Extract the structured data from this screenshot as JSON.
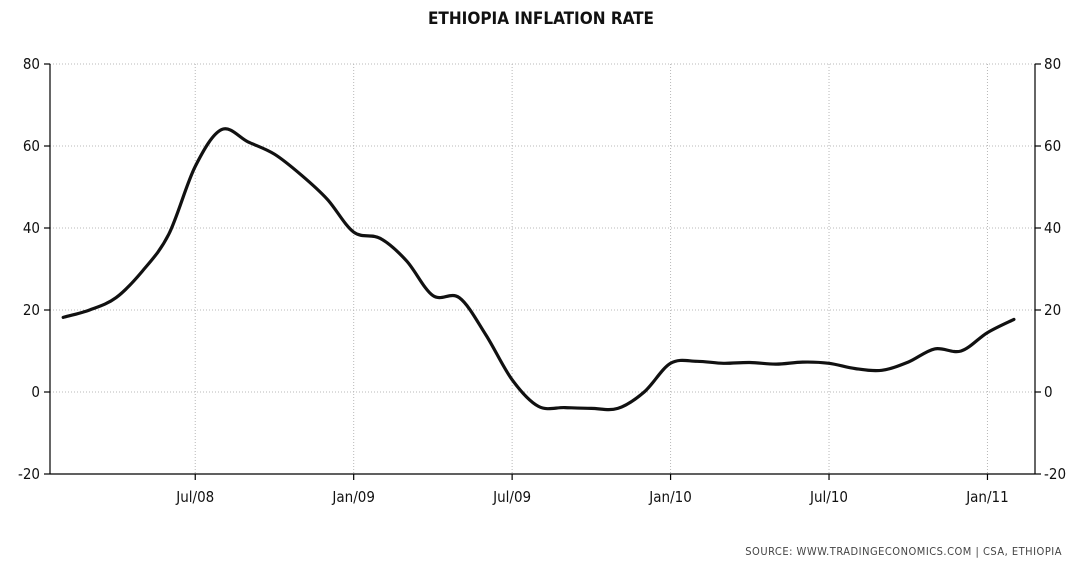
{
  "chart_data": {
    "type": "line",
    "title": "ETHIOPIA INFLATION RATE",
    "source": "SOURCE:  WWW.TRADINGECONOMICS.COM  |  CSA, ETHIOPIA",
    "xlabel": "",
    "ylabel": "",
    "ylim": [
      -20,
      80
    ],
    "yticks": [
      -20,
      0,
      20,
      40,
      60,
      80
    ],
    "x_tick_labels": [
      "Jul/08",
      "Jan/09",
      "Jul/09",
      "Jan/10",
      "Jul/10",
      "Jan/11"
    ],
    "x_tick_months": [
      6,
      12,
      18,
      24,
      30,
      36
    ],
    "xlim_months": [
      0.5,
      37.8
    ],
    "grid": true,
    "legend": "none",
    "series": [
      {
        "values": [
          {
            "x": "2008-01",
            "y": 18.2
          },
          {
            "x": "2008-02",
            "y": 20.0
          },
          {
            "x": "2008-03",
            "y": 23.0
          },
          {
            "x": "2008-04",
            "y": 29.5
          },
          {
            "x": "2008-05",
            "y": 38.5
          },
          {
            "x": "2008-06",
            "y": 55.0
          },
          {
            "x": "2008-07",
            "y": 64.0
          },
          {
            "x": "2008-08",
            "y": 61.0
          },
          {
            "x": "2008-09",
            "y": 58.0
          },
          {
            "x": "2008-10",
            "y": 53.0
          },
          {
            "x": "2008-11",
            "y": 47.0
          },
          {
            "x": "2008-12",
            "y": 39.0
          },
          {
            "x": "2009-01",
            "y": 37.5
          },
          {
            "x": "2009-02",
            "y": 32.0
          },
          {
            "x": "2009-03",
            "y": 23.5
          },
          {
            "x": "2009-04",
            "y": 23.0
          },
          {
            "x": "2009-05",
            "y": 14.0
          },
          {
            "x": "2009-06",
            "y": 3.0
          },
          {
            "x": "2009-07",
            "y": -3.5
          },
          {
            "x": "2009-08",
            "y": -3.8
          },
          {
            "x": "2009-09",
            "y": -4.0
          },
          {
            "x": "2009-10",
            "y": -4.0
          },
          {
            "x": "2009-11",
            "y": 0.0
          },
          {
            "x": "2009-12",
            "y": 7.0
          },
          {
            "x": "2010-01",
            "y": 7.5
          },
          {
            "x": "2010-02",
            "y": 7.0
          },
          {
            "x": "2010-03",
            "y": 7.2
          },
          {
            "x": "2010-04",
            "y": 6.8
          },
          {
            "x": "2010-05",
            "y": 7.3
          },
          {
            "x": "2010-06",
            "y": 7.0
          },
          {
            "x": "2010-07",
            "y": 5.7
          },
          {
            "x": "2010-08",
            "y": 5.3
          },
          {
            "x": "2010-09",
            "y": 7.3
          },
          {
            "x": "2010-10",
            "y": 10.5
          },
          {
            "x": "2010-11",
            "y": 10.0
          },
          {
            "x": "2010-12",
            "y": 14.5
          },
          {
            "x": "2011-01",
            "y": 17.7
          }
        ]
      }
    ]
  }
}
